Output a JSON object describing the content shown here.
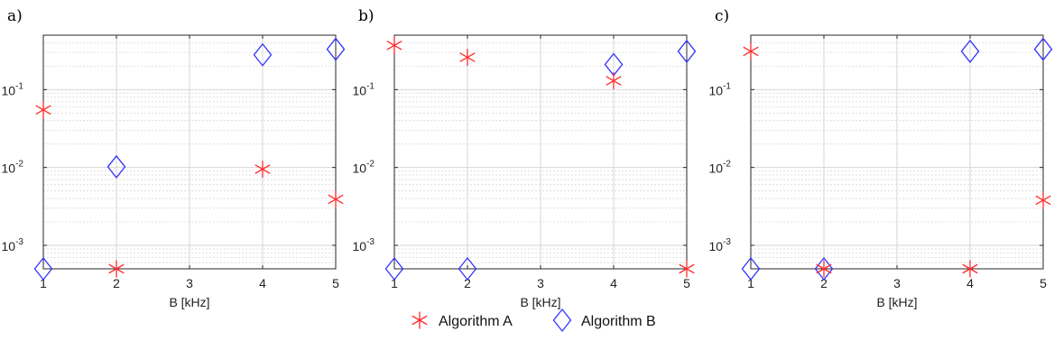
{
  "chart_data": [
    {
      "type": "scatter",
      "panel_label": "a)",
      "xlabel": "B [kHz]",
      "ylabel": "",
      "xlim": [
        1,
        5
      ],
      "ylim": [
        0.0005,
        0.5
      ],
      "yscale": "log",
      "xticks": [
        "1",
        "2",
        "3",
        "4",
        "5"
      ],
      "grid": true,
      "series": [
        {
          "name": "Algorithm A",
          "marker": "asterisk",
          "color": "#ff2a2a",
          "points": [
            {
              "x": 1,
              "y": 0.055
            },
            {
              "x": 2,
              "y": 0.0005
            },
            {
              "x": 4,
              "y": 0.0095
            },
            {
              "x": 5,
              "y": 0.0039
            }
          ]
        },
        {
          "name": "Algorithm B",
          "marker": "diamond",
          "color": "#3333ff",
          "points": [
            {
              "x": 1,
              "y": 0.0005
            },
            {
              "x": 2,
              "y": 0.0102
            },
            {
              "x": 4,
              "y": 0.28
            },
            {
              "x": 5,
              "y": 0.33
            }
          ]
        }
      ]
    },
    {
      "type": "scatter",
      "panel_label": "b)",
      "xlabel": "B [kHz]",
      "ylabel": "",
      "xlim": [
        1,
        5
      ],
      "ylim": [
        0.0005,
        0.5
      ],
      "yscale": "log",
      "xticks": [
        "1",
        "2",
        "3",
        "4",
        "5"
      ],
      "grid": true,
      "series": [
        {
          "name": "Algorithm A",
          "marker": "asterisk",
          "color": "#ff2a2a",
          "points": [
            {
              "x": 1,
              "y": 0.37
            },
            {
              "x": 2,
              "y": 0.26
            },
            {
              "x": 4,
              "y": 0.13
            },
            {
              "x": 5,
              "y": 0.0005
            }
          ]
        },
        {
          "name": "Algorithm B",
          "marker": "diamond",
          "color": "#3333ff",
          "points": [
            {
              "x": 1,
              "y": 0.0005
            },
            {
              "x": 2,
              "y": 0.0005
            },
            {
              "x": 4,
              "y": 0.21
            },
            {
              "x": 5,
              "y": 0.31
            }
          ]
        }
      ]
    },
    {
      "type": "scatter",
      "panel_label": "c)",
      "xlabel": "B [kHz]",
      "ylabel": "",
      "xlim": [
        1,
        5
      ],
      "ylim": [
        0.0005,
        0.5
      ],
      "yscale": "log",
      "xticks": [
        "1",
        "2",
        "3",
        "4",
        "5"
      ],
      "grid": true,
      "series": [
        {
          "name": "Algorithm A",
          "marker": "asterisk",
          "color": "#ff2a2a",
          "points": [
            {
              "x": 1,
              "y": 0.31
            },
            {
              "x": 2,
              "y": 0.0005
            },
            {
              "x": 4,
              "y": 0.0005
            },
            {
              "x": 5,
              "y": 0.0038
            }
          ]
        },
        {
          "name": "Algorithm B",
          "marker": "diamond",
          "color": "#3333ff",
          "points": [
            {
              "x": 1,
              "y": 0.0005
            },
            {
              "x": 2,
              "y": 0.0005
            },
            {
              "x": 4,
              "y": 0.31
            },
            {
              "x": 5,
              "y": 0.33
            }
          ]
        }
      ]
    }
  ],
  "y_tick_labels": [
    {
      "value": 0.1,
      "base": "10",
      "exp": "-1"
    },
    {
      "value": 0.01,
      "base": "10",
      "exp": "-2"
    },
    {
      "value": 0.001,
      "base": "10",
      "exp": "-3"
    }
  ],
  "legend": {
    "placement": "bottom-center",
    "items": [
      {
        "label": "Algorithm A",
        "marker": "asterisk",
        "color": "#ff2a2a"
      },
      {
        "label": "Algorithm B",
        "marker": "diamond",
        "color": "#3333ff"
      }
    ]
  }
}
